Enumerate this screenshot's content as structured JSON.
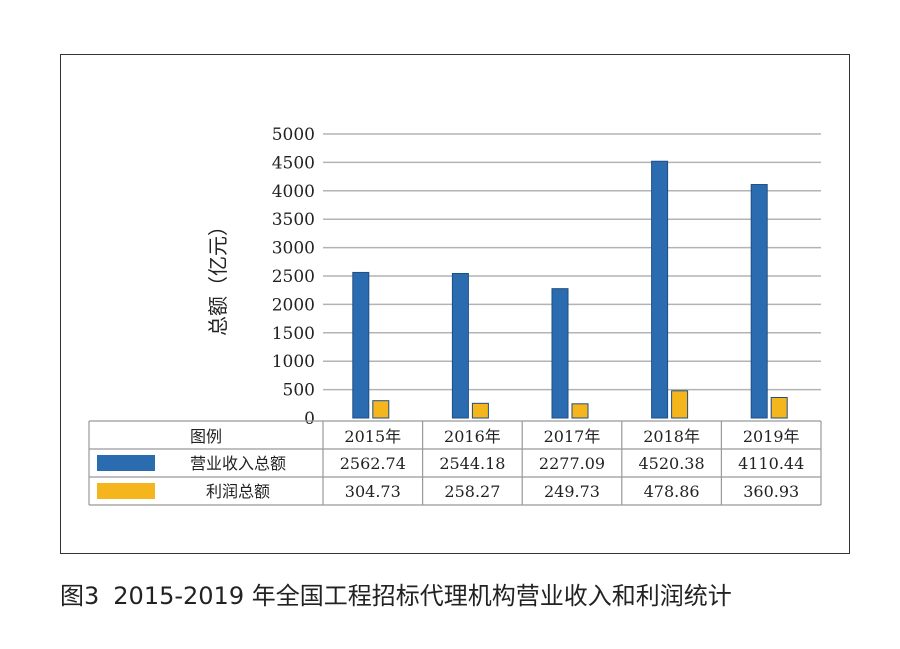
{
  "chart_data": {
    "type": "bar",
    "ylabel": "总额（亿元）",
    "ylim": [
      0,
      5000
    ],
    "yticks": [
      "5000",
      "4500",
      "4000",
      "3500",
      "3000",
      "2500",
      "2000",
      "1500",
      "1000",
      "500",
      "0"
    ],
    "grid": true,
    "legend_header": "图例",
    "categories": [
      "2015年",
      "2016年",
      "2017年",
      "2018年",
      "2019年"
    ],
    "series": [
      {
        "name": "营业收入总额",
        "color": "#2b6cb0",
        "values": [
          2562.74,
          2544.18,
          2277.09,
          4520.38,
          4110.44
        ],
        "labels": [
          "2562.74",
          "2544.18",
          "2277.09",
          "4520.38",
          "4110.44"
        ]
      },
      {
        "name": "利润总额",
        "color": "#f5b51d",
        "values": [
          304.73,
          258.27,
          249.73,
          478.86,
          360.93
        ],
        "labels": [
          "304.73",
          "258.27",
          "249.73",
          "478.86",
          "360.93"
        ]
      }
    ]
  },
  "caption": {
    "figure_no": "图3",
    "text": "2015-2019 年全国工程招标代理机构营业收入和利润统计"
  }
}
